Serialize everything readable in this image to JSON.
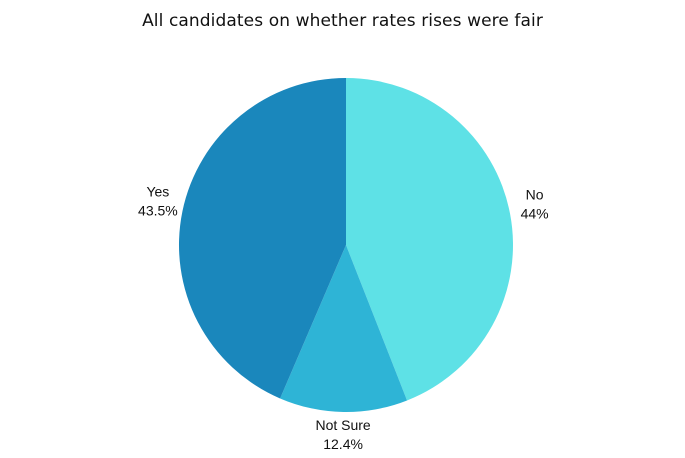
{
  "chart_data": {
    "type": "pie",
    "title": "All candidates on whether rates rises were fair",
    "slices": [
      {
        "label": "No",
        "value": 44,
        "display": "44%",
        "color": "#5ee1e6"
      },
      {
        "label": "Not Sure",
        "value": 12.4,
        "display": "12.4%",
        "color": "#2eb4d6"
      },
      {
        "label": "Yes",
        "value": 43.5,
        "display": "43.5%",
        "color": "#1a87bc"
      }
    ],
    "start_angle": "12 o'clock",
    "direction": "clockwise"
  }
}
